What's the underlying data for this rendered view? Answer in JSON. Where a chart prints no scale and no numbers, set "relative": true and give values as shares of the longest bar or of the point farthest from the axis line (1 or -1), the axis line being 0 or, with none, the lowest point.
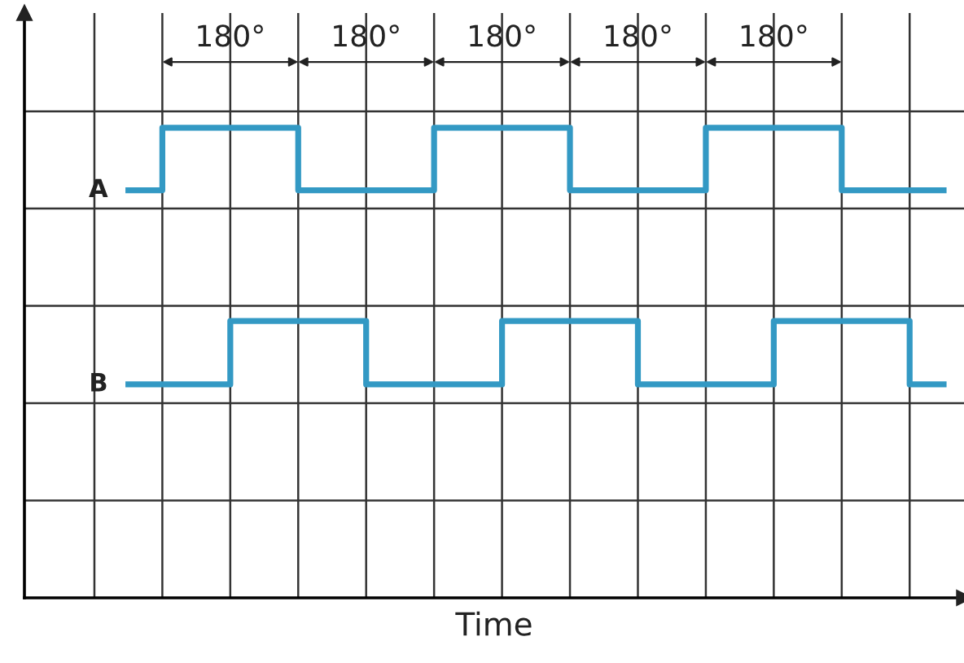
{
  "chart_data": {
    "type": "step",
    "xlabel": "Time",
    "relative": true,
    "grid": true,
    "categories": [
      null,
      null,
      null,
      null,
      null,
      null,
      null,
      null,
      null,
      null,
      null,
      null,
      null,
      null,
      null,
      null,
      null,
      null,
      null,
      null,
      null,
      null,
      null,
      null,
      null,
      null
    ],
    "series": [
      {
        "name": "A",
        "color": "#3399c4",
        "values": [
          null,
          0.867,
          1,
          1,
          1,
          1,
          0.867,
          0.867,
          0.867,
          0.867,
          1,
          1,
          1,
          1,
          0.867,
          0.867,
          0.867,
          0.867,
          1,
          1,
          1,
          1,
          0.867,
          0.867,
          0.867,
          0.867
        ]
      },
      {
        "name": "B",
        "color": "#3399c4",
        "values": [
          null,
          0.454,
          0.454,
          0.454,
          0.589,
          0.589,
          0.589,
          0.589,
          0.454,
          0.454,
          0.454,
          0.454,
          0.589,
          0.589,
          0.589,
          0.589,
          0.454,
          0.454,
          0.454,
          0.454,
          0.589,
          0.589,
          0.589,
          0.589,
          0.454,
          0.454
        ]
      }
    ],
    "annotations": [
      "180°",
      "180°",
      "180°",
      "180°",
      "180°"
    ]
  }
}
